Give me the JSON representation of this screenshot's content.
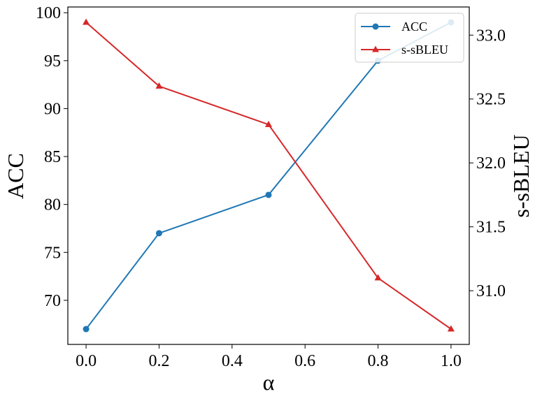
{
  "chart_data": {
    "type": "line",
    "x": [
      0.0,
      0.2,
      0.5,
      0.8,
      1.0
    ],
    "xlabel": "α",
    "xlim": [
      -0.05,
      1.05
    ],
    "xticks": [
      0.0,
      0.2,
      0.4,
      0.6,
      0.8,
      1.0
    ],
    "xtick_labels": [
      "0.0",
      "0.2",
      "0.4",
      "0.6",
      "0.8",
      "1.0"
    ],
    "ylabel_left": "ACC",
    "ylim_left": [
      65.4,
      100.6
    ],
    "yticks_left": [
      70,
      75,
      80,
      85,
      90,
      95,
      100
    ],
    "ytick_labels_left": [
      "70",
      "75",
      "80",
      "85",
      "90",
      "95",
      "100"
    ],
    "ylabel_right": "s-sBLEU",
    "ylim_right": [
      30.58,
      33.22
    ],
    "yticks_right": [
      31.0,
      31.5,
      32.0,
      32.5,
      33.0
    ],
    "ytick_labels_right": [
      "31.0",
      "31.5",
      "32.0",
      "32.5",
      "33.0"
    ],
    "grid": false,
    "legend_position": "top-right",
    "series": [
      {
        "name": "ACC",
        "axis": "left",
        "values": [
          67,
          77,
          81,
          95,
          99
        ],
        "color": "#1f77b4",
        "marker": "circle"
      },
      {
        "name": "s-sBLEU",
        "axis": "right",
        "values": [
          33.1,
          32.6,
          32.3,
          31.1,
          30.7
        ],
        "color": "#d62728",
        "marker": "triangle"
      }
    ]
  }
}
